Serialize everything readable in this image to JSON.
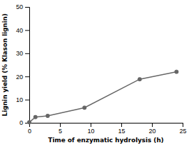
{
  "chart_data": {
    "type": "line",
    "x": [
      0,
      1,
      3,
      9,
      18,
      24
    ],
    "values": [
      0.2,
      2.5,
      3.0,
      6.5,
      18.8,
      22.0
    ],
    "xlabel": "Time of enzymatic hydrolysis (h)",
    "ylabel": "Lignin yield (% Klason lignin)",
    "xlim": [
      0,
      25
    ],
    "ylim": [
      0,
      50
    ],
    "xticks": [
      0,
      5,
      10,
      15,
      20,
      25
    ],
    "yticks": [
      0,
      10,
      20,
      30,
      40,
      50
    ],
    "color": "#666666",
    "marker": "circle",
    "grid": false
  }
}
